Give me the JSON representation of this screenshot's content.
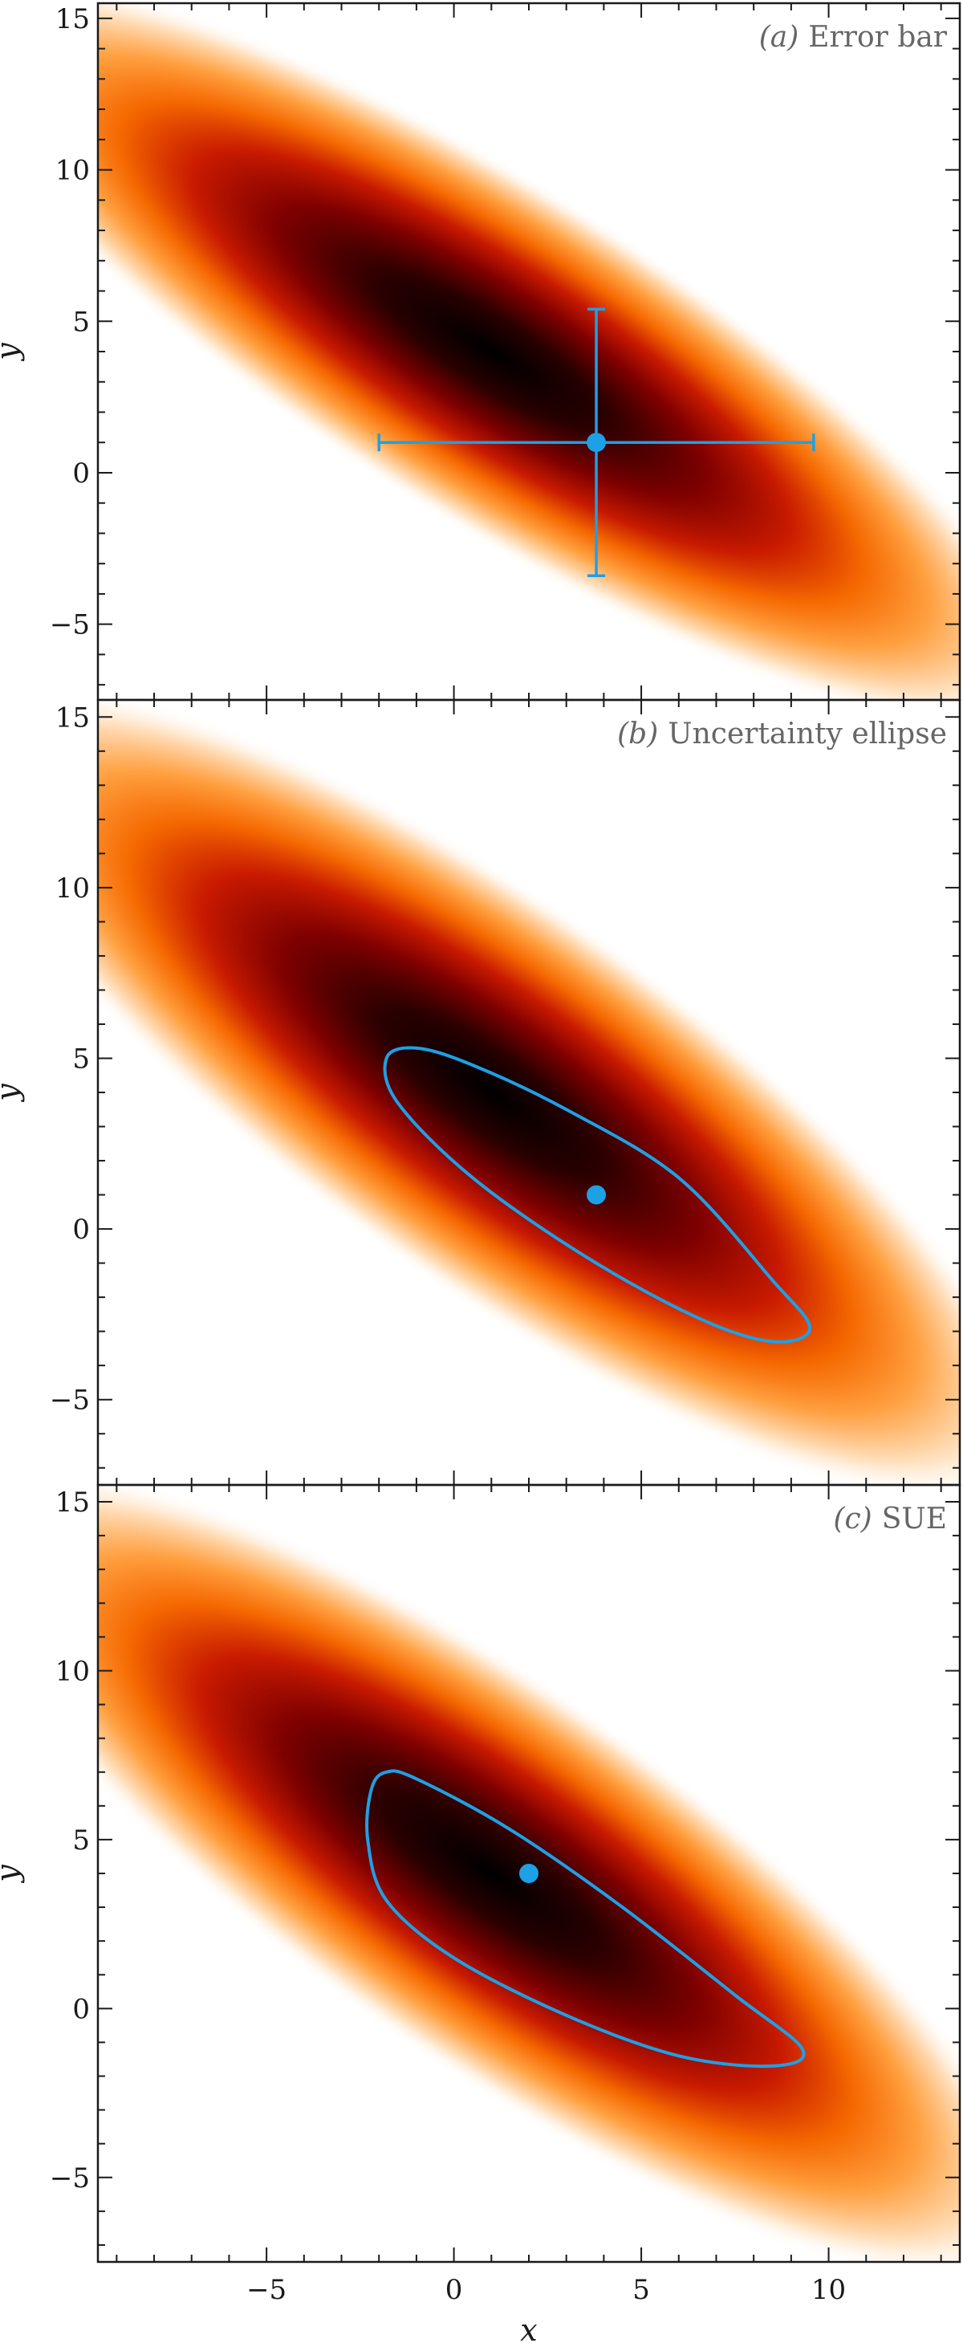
{
  "chart_data": [
    {
      "type": "heatmap",
      "title": "(a) Error bar",
      "title_letter": "(a)",
      "title_text": "Error bar",
      "xlabel": "",
      "ylabel": "y",
      "xlim": [
        -9.5,
        13.5
      ],
      "ylim": [
        -7.5,
        15.5
      ],
      "x_ticks": [
        -5,
        0,
        5,
        10
      ],
      "y_ticks": [
        -5,
        0,
        5,
        10,
        15
      ],
      "x_tick_labels": [
        "−5",
        "0",
        "5",
        "10"
      ],
      "y_tick_labels": [
        "−5",
        "0",
        "5",
        "10",
        "15"
      ],
      "colormap": "white-orange-red-black",
      "density_peak": [
        1.0,
        4.0
      ],
      "estimate": {
        "x": 3.8,
        "y": 1.0
      },
      "error_bar": {
        "x_low": -2.0,
        "x_high": 9.6,
        "y_low": -3.4,
        "y_high": 5.4
      },
      "marker_color": "#1ea0e6"
    },
    {
      "type": "heatmap",
      "title": "(b) Uncertainty ellipse",
      "title_letter": "(b)",
      "title_text": "Uncertainty ellipse",
      "xlabel": "",
      "ylabel": "y",
      "xlim": [
        -9.5,
        13.5
      ],
      "ylim": [
        -7.5,
        15.5
      ],
      "x_ticks": [
        -5,
        0,
        5,
        10
      ],
      "y_ticks": [
        -5,
        0,
        5,
        10,
        15
      ],
      "x_tick_labels": [
        "−5",
        "0",
        "5",
        "10"
      ],
      "y_tick_labels": [
        "−5",
        "0",
        "5",
        "10",
        "15"
      ],
      "colormap": "white-orange-red-black",
      "density_peak": [
        1.0,
        4.0
      ],
      "estimate": {
        "x": 3.8,
        "y": 1.0
      },
      "contour": [
        [
          -1.8,
          5.0
        ],
        [
          -1.0,
          5.3
        ],
        [
          0.5,
          4.8
        ],
        [
          3.0,
          3.5
        ],
        [
          6.0,
          1.5
        ],
        [
          8.5,
          -1.5
        ],
        [
          9.5,
          -2.9
        ],
        [
          8.5,
          -3.3
        ],
        [
          6.5,
          -2.6
        ],
        [
          3.5,
          -0.8
        ],
        [
          0.5,
          1.5
        ],
        [
          -1.5,
          3.7
        ],
        [
          -1.8,
          5.0
        ]
      ],
      "marker_color": "#1ea0e6"
    },
    {
      "type": "heatmap",
      "title": "(c) SUE",
      "title_letter": "(c)",
      "title_text": "SUE",
      "xlabel": "x",
      "ylabel": "y",
      "xlim": [
        -9.5,
        13.5
      ],
      "ylim": [
        -7.5,
        15.5
      ],
      "x_ticks": [
        -5,
        0,
        5,
        10
      ],
      "y_ticks": [
        -5,
        0,
        5,
        10,
        15
      ],
      "x_tick_labels": [
        "−5",
        "0",
        "5",
        "10"
      ],
      "y_tick_labels": [
        "−5",
        "0",
        "5",
        "10",
        "15"
      ],
      "colormap": "white-orange-red-black",
      "density_peak": [
        1.0,
        4.0
      ],
      "estimate": {
        "x": 2.0,
        "y": 4.0
      },
      "contour": [
        [
          -2.2,
          6.5
        ],
        [
          -1.8,
          7.0
        ],
        [
          -1.0,
          6.8
        ],
        [
          1.5,
          5.3
        ],
        [
          4.5,
          3.0
        ],
        [
          7.5,
          0.4
        ],
        [
          9.3,
          -1.2
        ],
        [
          8.5,
          -1.7
        ],
        [
          6.0,
          -1.4
        ],
        [
          3.0,
          -0.2
        ],
        [
          0.0,
          1.5
        ],
        [
          -1.8,
          3.2
        ],
        [
          -2.3,
          5.0
        ],
        [
          -2.2,
          6.5
        ]
      ],
      "marker_color": "#1ea0e6"
    }
  ]
}
